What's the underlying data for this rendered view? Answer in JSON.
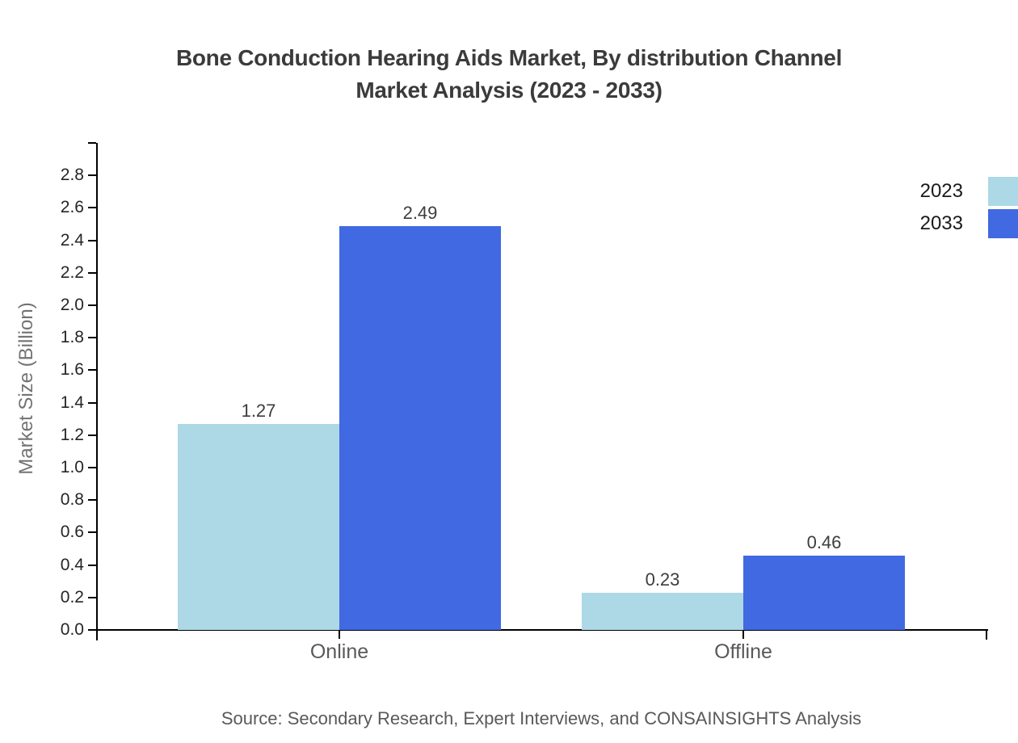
{
  "title": {
    "line1": "Bone Conduction Hearing Aids Market, By distribution Channel",
    "line2": "Market Analysis (2023 - 2033)"
  },
  "source": "Source: Secondary Research, Expert Interviews, and CONSAINSIGHTS Analysis",
  "chart_data": {
    "type": "bar",
    "title": "Bone Conduction Hearing Aids Market, By distribution Channel Market Analysis (2023 - 2033)",
    "categories": [
      "Online",
      "Offline"
    ],
    "series": [
      {
        "name": "2023",
        "color": "#ADD8E6",
        "values": [
          1.27,
          0.23
        ]
      },
      {
        "name": "2033",
        "color": "#4169E1",
        "values": [
          2.49,
          0.46
        ]
      }
    ],
    "xlabel": "",
    "ylabel": "Market Size (Billion)",
    "ylim": [
      0,
      3.0
    ],
    "yticks": [
      0.0,
      0.2,
      0.4,
      0.6,
      0.8,
      1.0,
      1.2,
      1.4,
      1.6,
      1.8,
      2.0,
      2.2,
      2.4,
      2.6,
      2.8
    ],
    "grid": false,
    "legend_position": "top-right",
    "value_label_format": "0.00"
  }
}
